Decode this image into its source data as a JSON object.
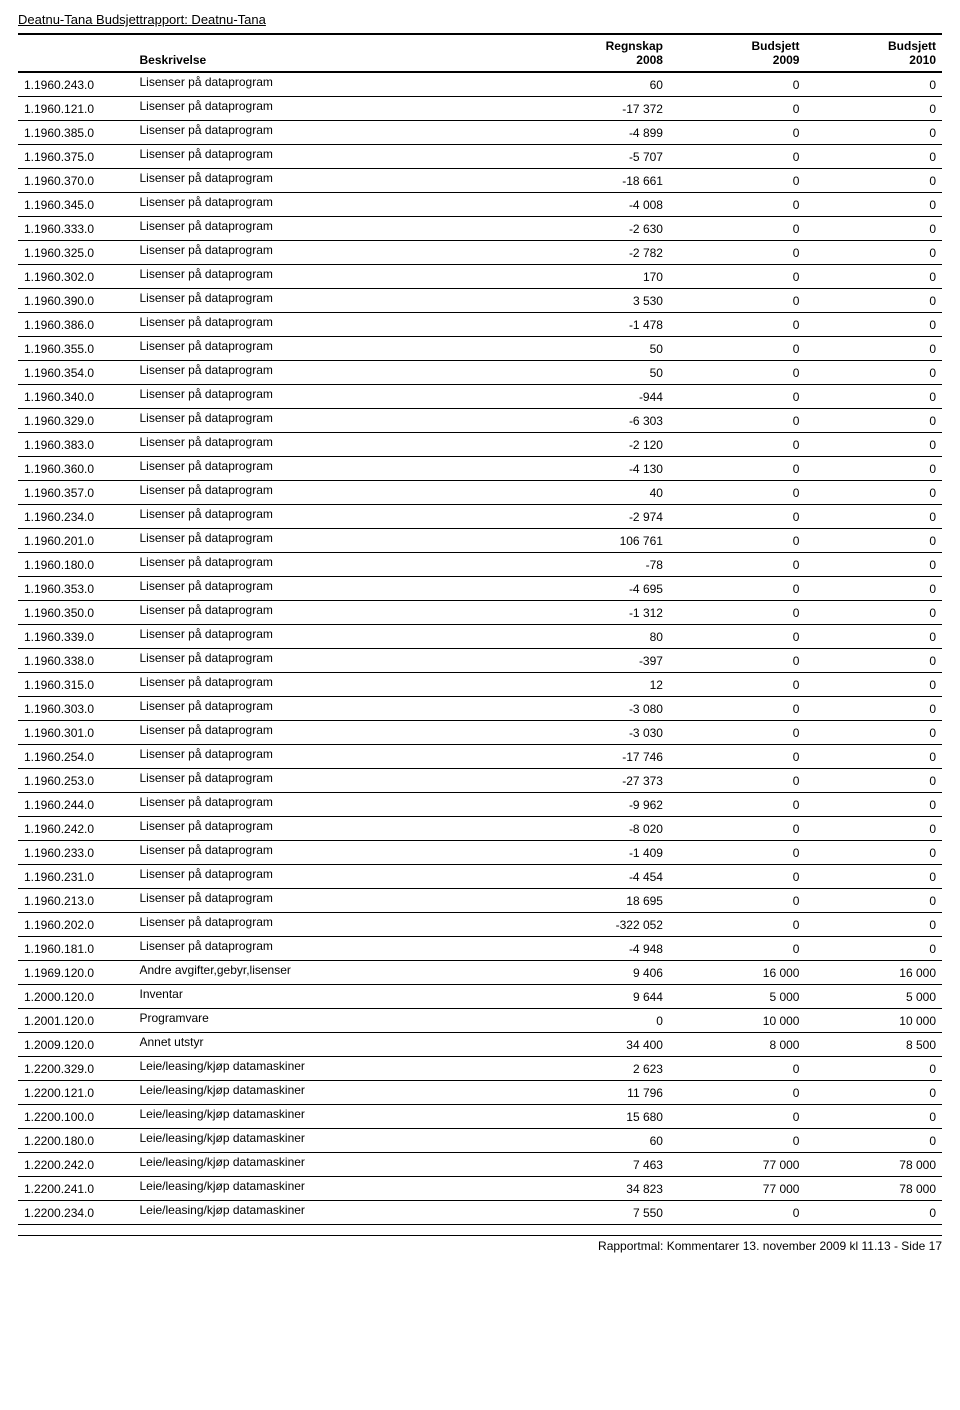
{
  "report": {
    "title": "Deatnu-Tana Budsjettrapport: Deatnu-Tana",
    "footer": "Rapportmal: Kommentarer 13. november 2009 kl 11.13 - Side 17"
  },
  "columns": {
    "desc": "Beskrivelse",
    "regnskap_label": "Regnskap",
    "regnskap_year": "2008",
    "budsjett1_label": "Budsjett",
    "budsjett1_year": "2009",
    "budsjett2_label": "Budsjett",
    "budsjett2_year": "2010"
  },
  "rows": [
    {
      "code": "1.1960.243.0",
      "desc": "Lisenser på dataprogram",
      "r": "60",
      "b1": "0",
      "b2": "0"
    },
    {
      "code": "1.1960.121.0",
      "desc": "Lisenser på dataprogram",
      "r": "-17 372",
      "b1": "0",
      "b2": "0"
    },
    {
      "code": "1.1960.385.0",
      "desc": "Lisenser på dataprogram",
      "r": "-4 899",
      "b1": "0",
      "b2": "0"
    },
    {
      "code": "1.1960.375.0",
      "desc": "Lisenser på dataprogram",
      "r": "-5 707",
      "b1": "0",
      "b2": "0"
    },
    {
      "code": "1.1960.370.0",
      "desc": "Lisenser på dataprogram",
      "r": "-18 661",
      "b1": "0",
      "b2": "0"
    },
    {
      "code": "1.1960.345.0",
      "desc": "Lisenser på dataprogram",
      "r": "-4 008",
      "b1": "0",
      "b2": "0"
    },
    {
      "code": "1.1960.333.0",
      "desc": "Lisenser på dataprogram",
      "r": "-2 630",
      "b1": "0",
      "b2": "0"
    },
    {
      "code": "1.1960.325.0",
      "desc": "Lisenser på dataprogram",
      "r": "-2 782",
      "b1": "0",
      "b2": "0"
    },
    {
      "code": "1.1960.302.0",
      "desc": "Lisenser på dataprogram",
      "r": "170",
      "b1": "0",
      "b2": "0"
    },
    {
      "code": "1.1960.390.0",
      "desc": "Lisenser på dataprogram",
      "r": "3 530",
      "b1": "0",
      "b2": "0"
    },
    {
      "code": "1.1960.386.0",
      "desc": "Lisenser på dataprogram",
      "r": "-1 478",
      "b1": "0",
      "b2": "0"
    },
    {
      "code": "1.1960.355.0",
      "desc": "Lisenser på dataprogram",
      "r": "50",
      "b1": "0",
      "b2": "0"
    },
    {
      "code": "1.1960.354.0",
      "desc": "Lisenser på dataprogram",
      "r": "50",
      "b1": "0",
      "b2": "0"
    },
    {
      "code": "1.1960.340.0",
      "desc": "Lisenser på dataprogram",
      "r": "-944",
      "b1": "0",
      "b2": "0"
    },
    {
      "code": "1.1960.329.0",
      "desc": "Lisenser på dataprogram",
      "r": "-6 303",
      "b1": "0",
      "b2": "0"
    },
    {
      "code": "1.1960.383.0",
      "desc": "Lisenser på dataprogram",
      "r": "-2 120",
      "b1": "0",
      "b2": "0"
    },
    {
      "code": "1.1960.360.0",
      "desc": "Lisenser på dataprogram",
      "r": "-4 130",
      "b1": "0",
      "b2": "0"
    },
    {
      "code": "1.1960.357.0",
      "desc": "Lisenser på dataprogram",
      "r": "40",
      "b1": "0",
      "b2": "0"
    },
    {
      "code": "1.1960.234.0",
      "desc": "Lisenser på dataprogram",
      "r": "-2 974",
      "b1": "0",
      "b2": "0"
    },
    {
      "code": "1.1960.201.0",
      "desc": "Lisenser på dataprogram",
      "r": "106 761",
      "b1": "0",
      "b2": "0"
    },
    {
      "code": "1.1960.180.0",
      "desc": "Lisenser på dataprogram",
      "r": "-78",
      "b1": "0",
      "b2": "0"
    },
    {
      "code": "1.1960.353.0",
      "desc": "Lisenser på dataprogram",
      "r": "-4 695",
      "b1": "0",
      "b2": "0"
    },
    {
      "code": "1.1960.350.0",
      "desc": "Lisenser på dataprogram",
      "r": "-1 312",
      "b1": "0",
      "b2": "0"
    },
    {
      "code": "1.1960.339.0",
      "desc": "Lisenser på dataprogram",
      "r": "80",
      "b1": "0",
      "b2": "0"
    },
    {
      "code": "1.1960.338.0",
      "desc": "Lisenser på dataprogram",
      "r": "-397",
      "b1": "0",
      "b2": "0"
    },
    {
      "code": "1.1960.315.0",
      "desc": "Lisenser på dataprogram",
      "r": "12",
      "b1": "0",
      "b2": "0"
    },
    {
      "code": "1.1960.303.0",
      "desc": "Lisenser på dataprogram",
      "r": "-3 080",
      "b1": "0",
      "b2": "0"
    },
    {
      "code": "1.1960.301.0",
      "desc": "Lisenser på dataprogram",
      "r": "-3 030",
      "b1": "0",
      "b2": "0"
    },
    {
      "code": "1.1960.254.0",
      "desc": "Lisenser på dataprogram",
      "r": "-17 746",
      "b1": "0",
      "b2": "0"
    },
    {
      "code": "1.1960.253.0",
      "desc": "Lisenser på dataprogram",
      "r": "-27 373",
      "b1": "0",
      "b2": "0"
    },
    {
      "code": "1.1960.244.0",
      "desc": "Lisenser på dataprogram",
      "r": "-9 962",
      "b1": "0",
      "b2": "0"
    },
    {
      "code": "1.1960.242.0",
      "desc": "Lisenser på dataprogram",
      "r": "-8 020",
      "b1": "0",
      "b2": "0"
    },
    {
      "code": "1.1960.233.0",
      "desc": "Lisenser på dataprogram",
      "r": "-1 409",
      "b1": "0",
      "b2": "0"
    },
    {
      "code": "1.1960.231.0",
      "desc": "Lisenser på dataprogram",
      "r": "-4 454",
      "b1": "0",
      "b2": "0"
    },
    {
      "code": "1.1960.213.0",
      "desc": "Lisenser på dataprogram",
      "r": "18 695",
      "b1": "0",
      "b2": "0"
    },
    {
      "code": "1.1960.202.0",
      "desc": "Lisenser på dataprogram",
      "r": "-322 052",
      "b1": "0",
      "b2": "0"
    },
    {
      "code": "1.1960.181.0",
      "desc": "Lisenser på dataprogram",
      "r": "-4 948",
      "b1": "0",
      "b2": "0"
    },
    {
      "code": "1.1969.120.0",
      "desc": "Andre avgifter,gebyr,lisenser",
      "r": "9 406",
      "b1": "16 000",
      "b2": "16 000"
    },
    {
      "code": "1.2000.120.0",
      "desc": "Inventar",
      "r": "9 644",
      "b1": "5 000",
      "b2": "5 000"
    },
    {
      "code": "1.2001.120.0",
      "desc": "Programvare",
      "r": "0",
      "b1": "10 000",
      "b2": "10 000"
    },
    {
      "code": "1.2009.120.0",
      "desc": "Annet utstyr",
      "r": "34 400",
      "b1": "8 000",
      "b2": "8 500"
    },
    {
      "code": "1.2200.329.0",
      "desc": "Leie/leasing/kjøp datamaskiner",
      "r": "2 623",
      "b1": "0",
      "b2": "0"
    },
    {
      "code": "1.2200.121.0",
      "desc": "Leie/leasing/kjøp datamaskiner",
      "r": "11 796",
      "b1": "0",
      "b2": "0"
    },
    {
      "code": "1.2200.100.0",
      "desc": "Leie/leasing/kjøp datamaskiner",
      "r": "15 680",
      "b1": "0",
      "b2": "0"
    },
    {
      "code": "1.2200.180.0",
      "desc": "Leie/leasing/kjøp datamaskiner",
      "r": "60",
      "b1": "0",
      "b2": "0"
    },
    {
      "code": "1.2200.242.0",
      "desc": "Leie/leasing/kjøp datamaskiner",
      "r": "7 463",
      "b1": "77 000",
      "b2": "78 000"
    },
    {
      "code": "1.2200.241.0",
      "desc": "Leie/leasing/kjøp datamaskiner",
      "r": "34 823",
      "b1": "77 000",
      "b2": "78 000"
    },
    {
      "code": "1.2200.234.0",
      "desc": "Leie/leasing/kjøp datamaskiner",
      "r": "7 550",
      "b1": "0",
      "b2": "0"
    }
  ]
}
